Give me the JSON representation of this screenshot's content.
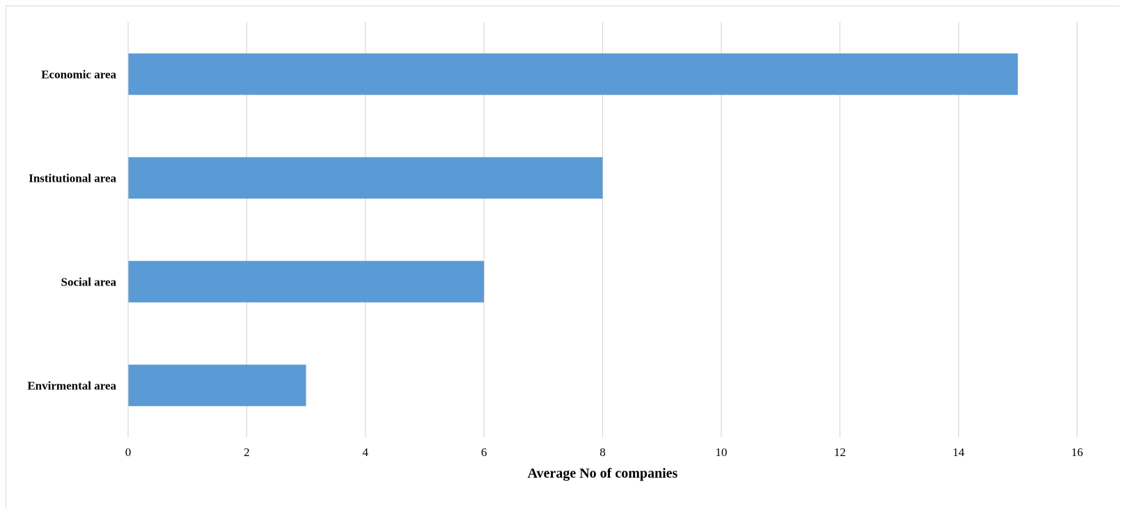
{
  "chart_data": {
    "type": "bar",
    "orientation": "horizontal",
    "categories": [
      "Economic area",
      "Institutional area",
      "Social area",
      "Envirmental area"
    ],
    "values": [
      15,
      8,
      6,
      3
    ],
    "title": "",
    "xlabel": "Average No of companies",
    "ylabel": "",
    "xlim": [
      0,
      16
    ],
    "xticks": [
      "0",
      "2",
      "4",
      "6",
      "8",
      "10",
      "12",
      "14",
      "16"
    ],
    "grid": "vertical",
    "legend": "none",
    "colors": {
      "bar": "#5b9bd5",
      "grid": "#d9d9d9",
      "axis_line": "#d9d9d9"
    }
  }
}
